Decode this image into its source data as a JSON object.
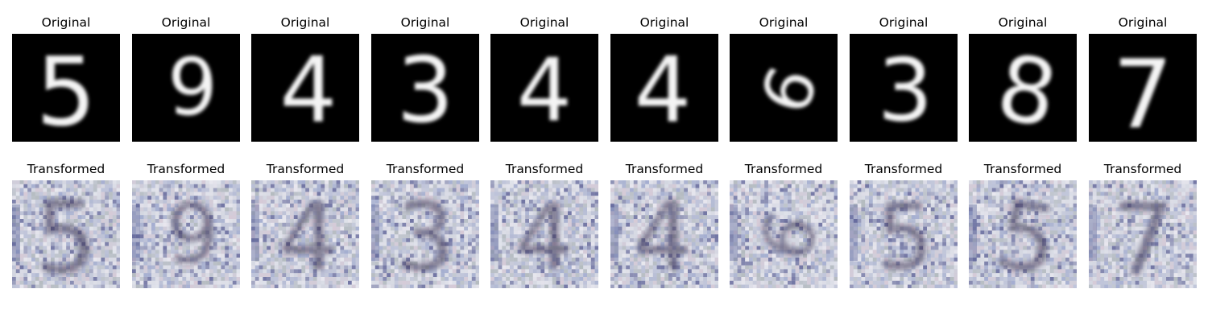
{
  "figure": {
    "rows": [
      {
        "id": "original",
        "panel_title": "Original",
        "panels": [
          {
            "digit": "5",
            "image": "grayscale-handwritten-digit"
          },
          {
            "digit": "9",
            "image": "grayscale-handwritten-digit"
          },
          {
            "digit": "4",
            "image": "grayscale-handwritten-digit"
          },
          {
            "digit": "3",
            "image": "grayscale-handwritten-digit"
          },
          {
            "digit": "4",
            "image": "grayscale-handwritten-digit"
          },
          {
            "digit": "4",
            "image": "grayscale-handwritten-digit"
          },
          {
            "digit": "6",
            "image": "grayscale-handwritten-digit"
          },
          {
            "digit": "3",
            "image": "grayscale-handwritten-digit"
          },
          {
            "digit": "8",
            "image": "grayscale-handwritten-digit"
          },
          {
            "digit": "7",
            "image": "grayscale-handwritten-digit"
          }
        ]
      },
      {
        "id": "transformed",
        "panel_title": "Transformed",
        "panels": [
          {
            "digit": "5",
            "image": "noisy-color-house-number-digit"
          },
          {
            "digit": "9",
            "image": "noisy-color-house-number-digit"
          },
          {
            "digit": "4",
            "image": "noisy-color-house-number-digit"
          },
          {
            "digit": "3",
            "image": "noisy-color-house-number-digit"
          },
          {
            "digit": "4",
            "image": "noisy-color-house-number-digit"
          },
          {
            "digit": "4",
            "image": "noisy-color-house-number-digit"
          },
          {
            "digit": "6",
            "image": "noisy-color-house-number-digit"
          },
          {
            "digit": "5",
            "image": "noisy-color-house-number-digit"
          },
          {
            "digit": "5",
            "image": "noisy-color-house-number-digit"
          },
          {
            "digit": "7",
            "image": "noisy-color-house-number-digit"
          }
        ]
      }
    ],
    "colors": {
      "background": "#ffffff",
      "original_background": "#000000",
      "original_stroke": "#f4f4f4",
      "transformed_background": "#cdd0dc",
      "transformed_stroke": "#3d3554",
      "transformed_noise": [
        "#b9bfd9",
        "#e6e8ef",
        "#9aa5cd",
        "#d8c9d6",
        "#aeb6b9",
        "#5b5f96",
        "#f0eef4"
      ]
    }
  }
}
